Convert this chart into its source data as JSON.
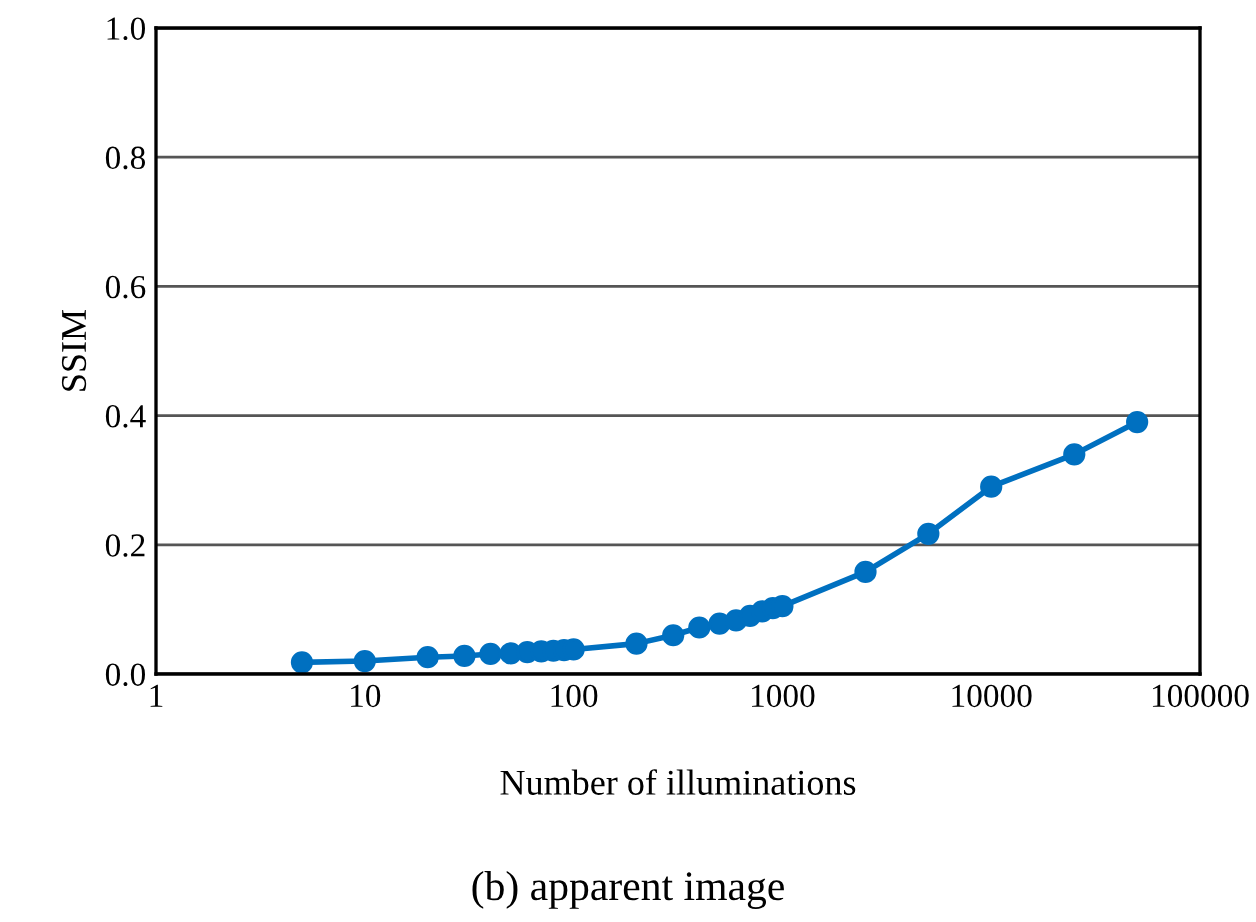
{
  "chart_data": {
    "type": "line",
    "title": "(b) apparent image",
    "xlabel": "Number of illuminations",
    "ylabel": "SSIM",
    "log": "x",
    "x": [
      5,
      10,
      20,
      30,
      40,
      50,
      60,
      70,
      80,
      90,
      100,
      200,
      300,
      400,
      500,
      600,
      700,
      800,
      900,
      1000,
      2500,
      5000,
      10000,
      25000,
      50000
    ],
    "series": [
      {
        "color": "#0070c0",
        "values": [
          0.018,
          0.02,
          0.026,
          0.028,
          0.031,
          0.032,
          0.034,
          0.035,
          0.036,
          0.037,
          0.038,
          0.047,
          0.06,
          0.072,
          0.078,
          0.083,
          0.09,
          0.097,
          0.102,
          0.105,
          0.158,
          0.217,
          0.29,
          0.34,
          0.39
        ]
      }
    ],
    "xlim": [
      1,
      100000
    ],
    "xticks": [
      1,
      10,
      100,
      1000,
      10000,
      100000
    ],
    "ylim": [
      0,
      1.0
    ],
    "yticks": [
      {
        "value": 0,
        "label": "0.0"
      },
      {
        "value": 0.2,
        "label": "0.2"
      },
      {
        "value": 0.4,
        "label": "0.4"
      },
      {
        "value": 0.6,
        "label": "0.6"
      },
      {
        "value": 0.8,
        "label": "0.8"
      },
      {
        "value": 1.0,
        "label": "1.0"
      }
    ],
    "grid": "y",
    "marker": "circle",
    "line_style": "solid",
    "legend": false
  }
}
